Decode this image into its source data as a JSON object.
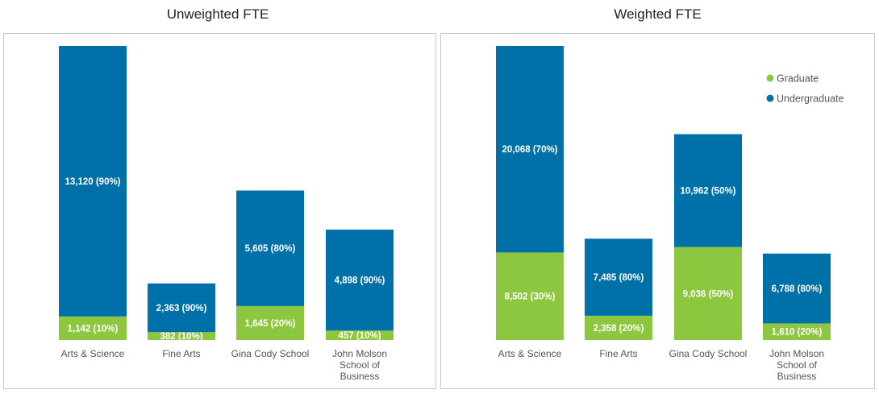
{
  "colors": {
    "graduate": "#8dc63f",
    "undergraduate": "#0070a8",
    "axis_text": "#555555",
    "value_text": "#ffffff",
    "panel_border": "#c8c8c8"
  },
  "chart_data": [
    {
      "type": "bar",
      "stacked": true,
      "title": "Unweighted FTE",
      "xlabel": "",
      "ylabel": "",
      "ylim": [
        0,
        14262
      ],
      "categories": [
        "Arts & Science",
        "Fine Arts",
        "Gina Cody School",
        "John Molson School of Business"
      ],
      "category_lines": [
        [
          "Arts & Science"
        ],
        [
          "Fine Arts"
        ],
        [
          "Gina Cody School"
        ],
        [
          "John Molson",
          "School of",
          "Business"
        ]
      ],
      "series": [
        {
          "name": "Graduate",
          "color": "#8dc63f",
          "values": [
            1142,
            382,
            1645,
            457
          ],
          "labels": [
            "1,142 (10%)",
            "382 (10%)",
            "1,645 (20%)",
            "457 (10%)"
          ]
        },
        {
          "name": "Undergraduate",
          "color": "#0070a8",
          "values": [
            13120,
            2363,
            5605,
            4898
          ],
          "labels": [
            "13,120 (90%)",
            "2,363 (90%)",
            "5,605 (80%)",
            "4,898 (90%)"
          ]
        }
      ],
      "legend": null,
      "grid": false
    },
    {
      "type": "bar",
      "stacked": true,
      "title": "Weighted FTE",
      "xlabel": "",
      "ylabel": "",
      "ylim": [
        0,
        28570
      ],
      "categories": [
        "Arts & Science",
        "Fine Arts",
        "Gina Cody School",
        "John Molson School of Business"
      ],
      "category_lines": [
        [
          "Arts & Science"
        ],
        [
          "Fine Arts"
        ],
        [
          "Gina Cody School"
        ],
        [
          "John Molson",
          "School of",
          "Business"
        ]
      ],
      "series": [
        {
          "name": "Graduate",
          "color": "#8dc63f",
          "values": [
            8502,
            2358,
            9036,
            1610
          ],
          "labels": [
            "8,502 (30%)",
            "2,358 (20%)",
            "9,036 (50%)",
            "1,610 (20%)"
          ]
        },
        {
          "name": "Undergraduate",
          "color": "#0070a8",
          "values": [
            20068,
            7485,
            10962,
            6788
          ],
          "labels": [
            "20,068 (70%)",
            "7,485 (80%)",
            "10,962 (50%)",
            "6,788 (80%)"
          ]
        }
      ],
      "legend": "top-right",
      "grid": false
    }
  ]
}
